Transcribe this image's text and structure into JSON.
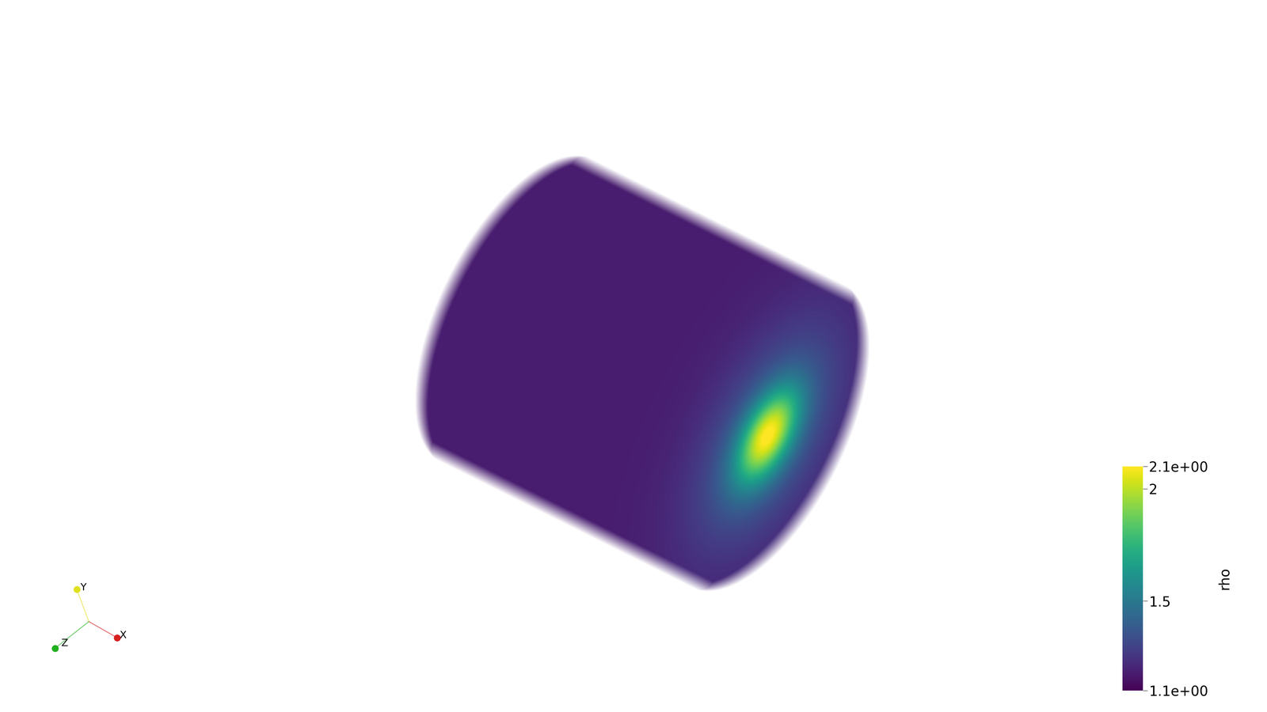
{
  "chart_data": {
    "type": "volume",
    "color": "viridis",
    "colorbar": {
      "label": "rho",
      "range": [
        1.1,
        2.1
      ],
      "ticks": [
        {
          "value": 2.1,
          "label": "2.1e+00"
        },
        2,
        1.5,
        {
          "value": 1.1,
          "label": "1.1e+00"
        }
      ]
    },
    "axes_labels": [
      "X",
      "Y",
      "Z"
    ]
  }
}
